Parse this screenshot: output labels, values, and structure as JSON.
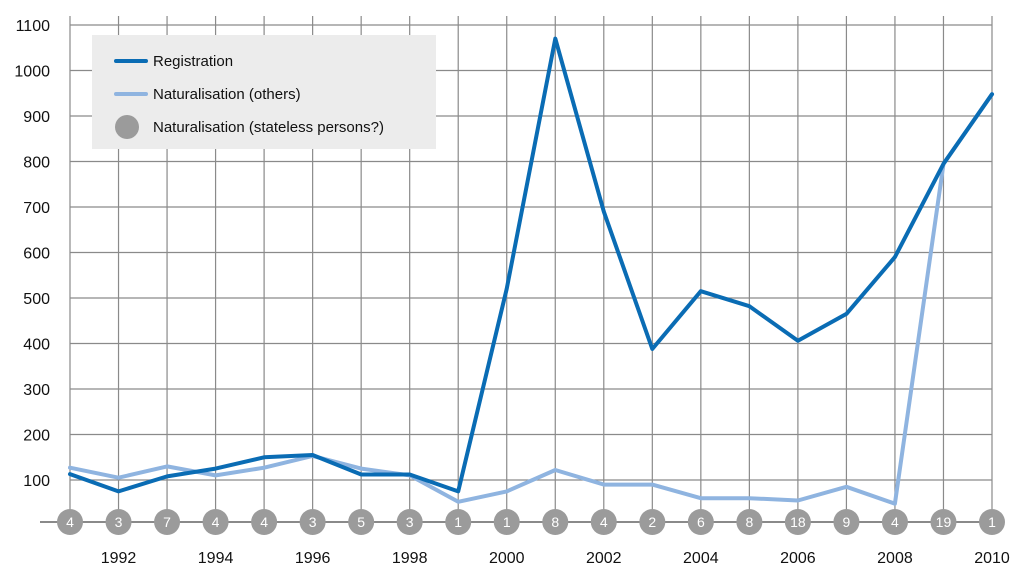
{
  "chart_data": {
    "type": "line",
    "x": [
      1991,
      1992,
      1993,
      1994,
      1995,
      1996,
      1997,
      1998,
      1999,
      2000,
      2001,
      2002,
      2003,
      2004,
      2005,
      2006,
      2007,
      2008,
      2009,
      2010
    ],
    "x_tick_labels": [
      "1992",
      "1994",
      "1996",
      "1998",
      "2000",
      "2002",
      "2004",
      "2006",
      "2008",
      "2010"
    ],
    "y_tick_labels": [
      "100",
      "200",
      "300",
      "400",
      "500",
      "600",
      "700",
      "800",
      "900",
      "1000",
      "1100"
    ],
    "ylim": [
      20,
      1120
    ],
    "grid": true,
    "legend_position": "top-left",
    "series": [
      {
        "name": "Registration",
        "color": "#0a6cb4",
        "values": [
          113,
          75,
          108,
          125,
          150,
          155,
          112,
          112,
          75,
          520,
          1070,
          690,
          388,
          515,
          482,
          406,
          465,
          590,
          795,
          948
        ]
      },
      {
        "name": "Naturalisation (others)",
        "color": "#8fb4e0",
        "values": [
          127,
          105,
          130,
          110,
          127,
          153,
          125,
          110,
          52,
          75,
          122,
          90,
          90,
          60,
          60,
          55,
          85,
          48,
          795,
          948
        ]
      },
      {
        "name": "Naturalisation (stateless persons?)",
        "color": "#9b9b9b",
        "values": [
          4,
          3,
          7,
          4,
          4,
          3,
          5,
          3,
          1,
          1,
          8,
          4,
          2,
          6,
          8,
          18,
          9,
          4,
          19,
          1
        ],
        "value_labels": [
          "4",
          "3",
          "7",
          "4",
          "4",
          "3",
          "5",
          "3",
          "1",
          "1",
          "8",
          "4",
          "2",
          "6",
          "8",
          "18",
          "9",
          "4",
          "19",
          "1"
        ]
      }
    ]
  }
}
